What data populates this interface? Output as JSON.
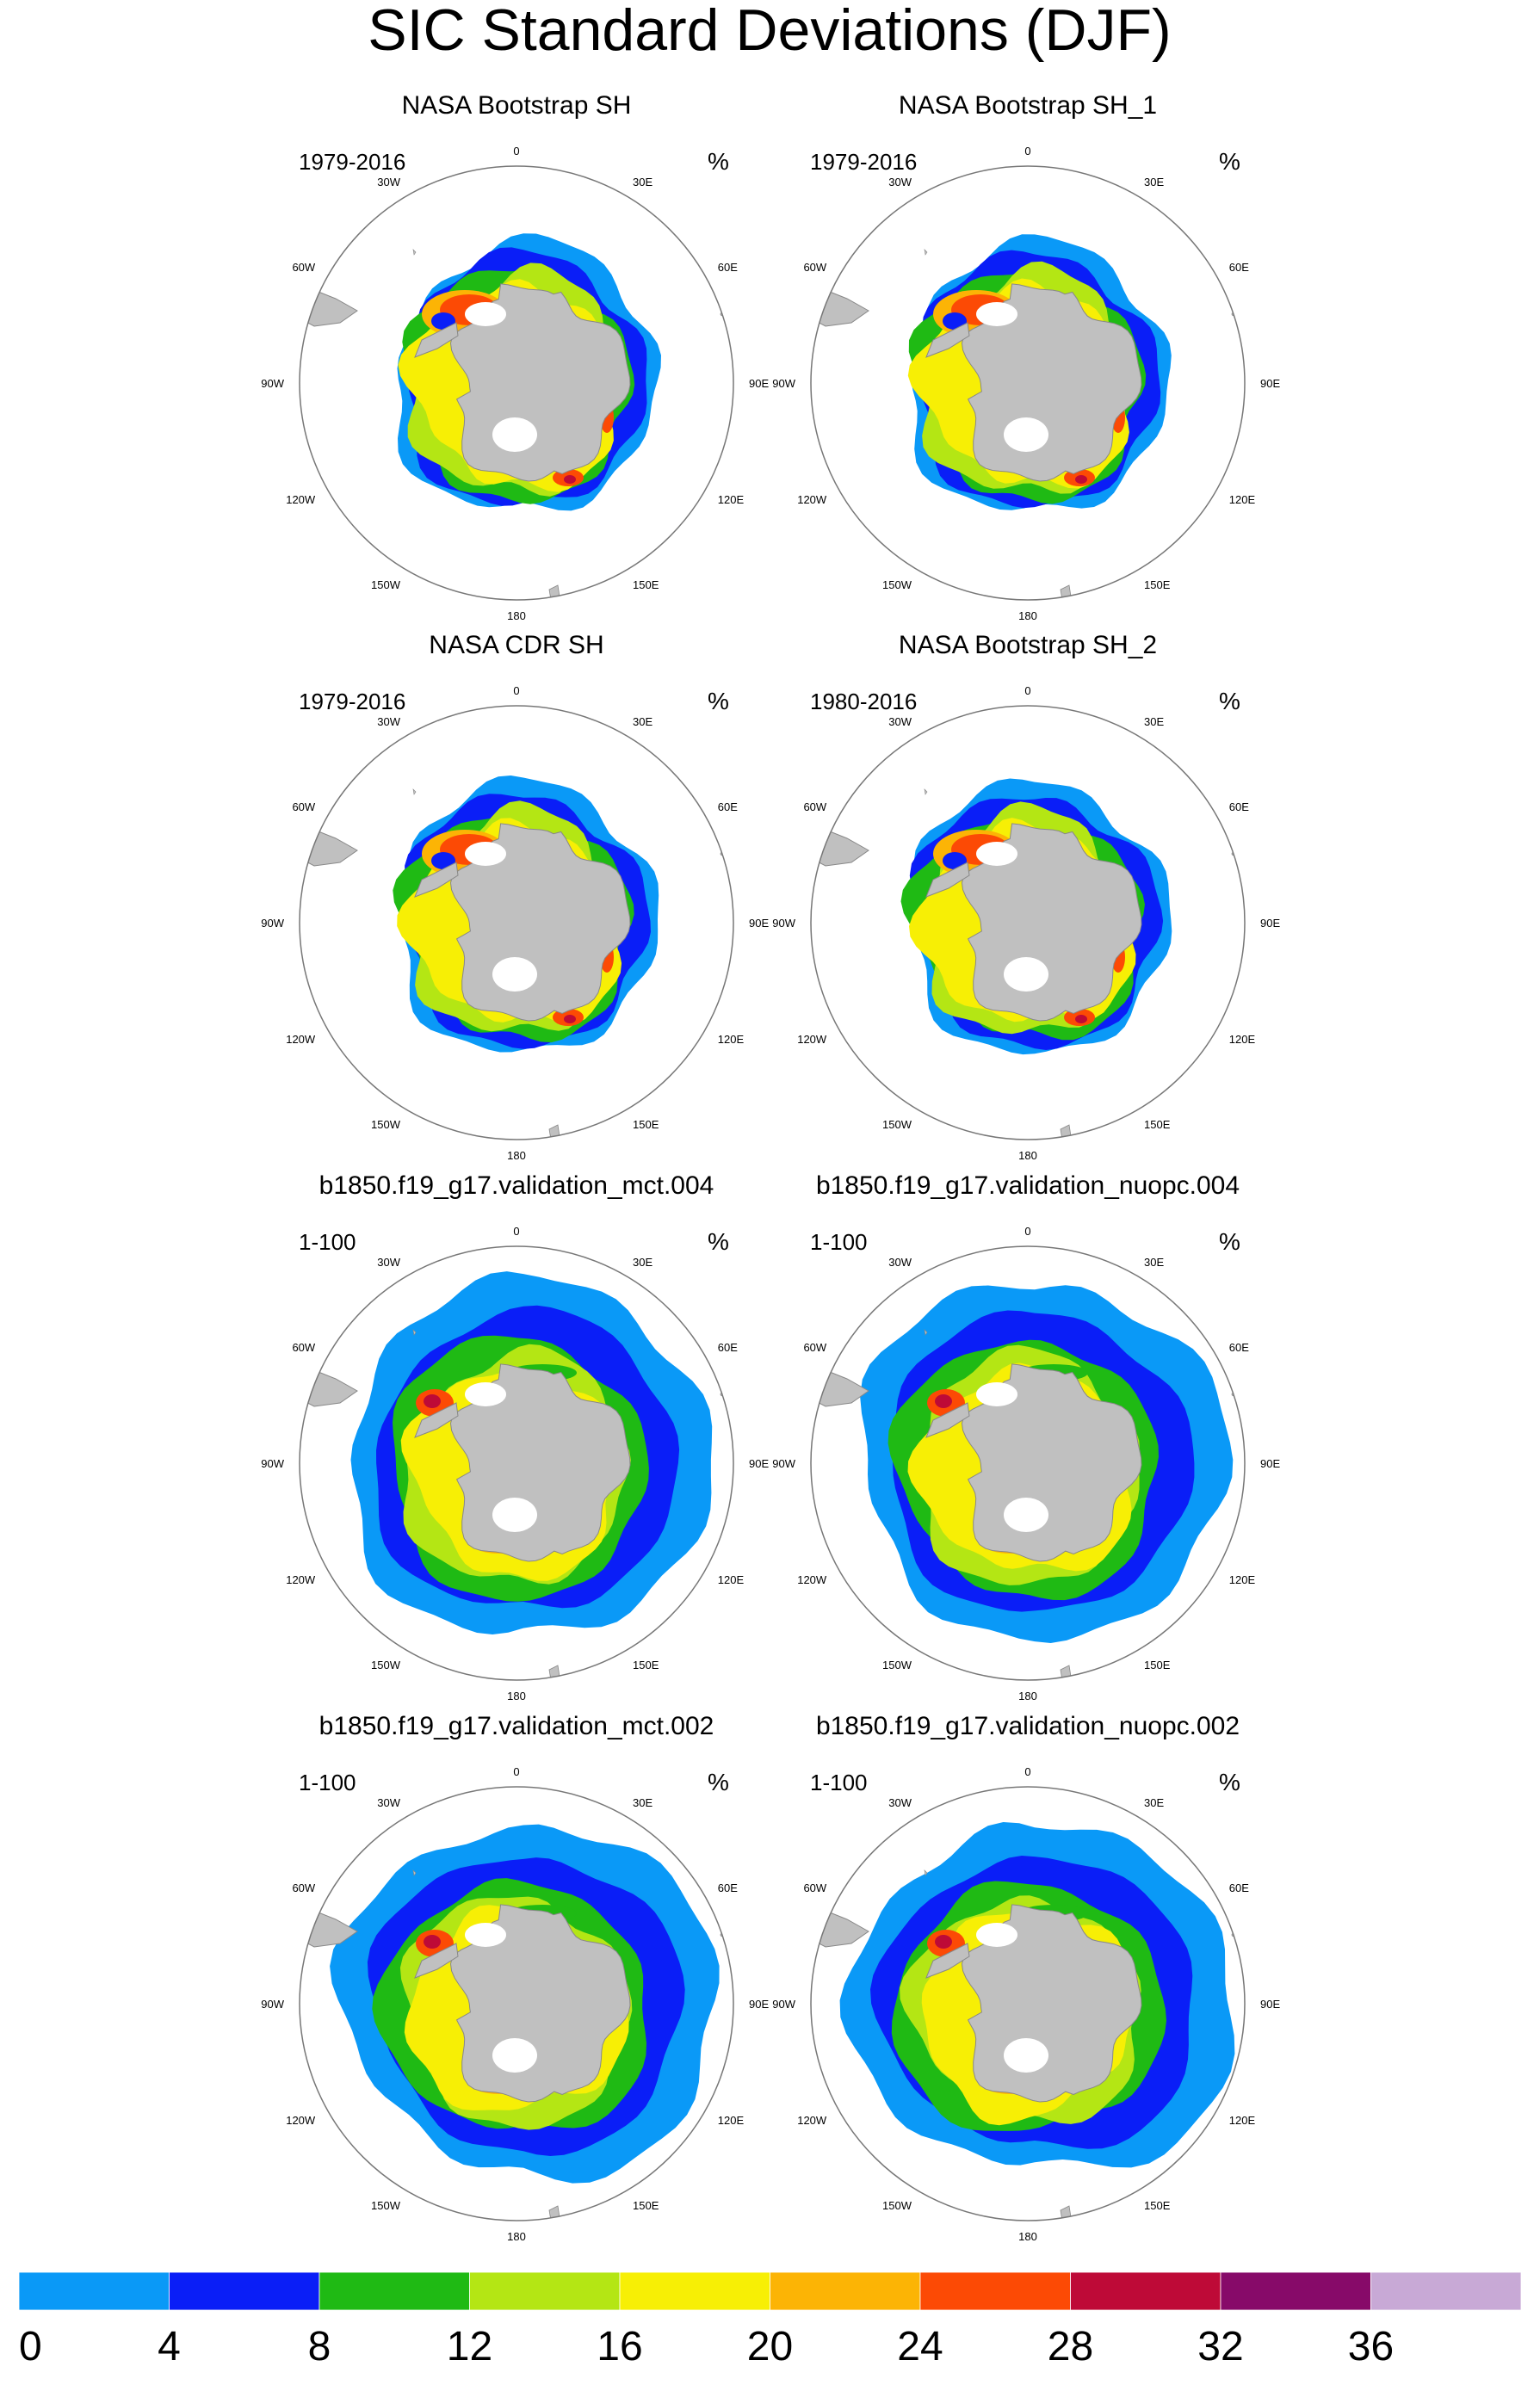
{
  "figure": {
    "title": "SIC Standard Deviations (DJF)"
  },
  "panels": [
    {
      "title": "NASA Bootstrap SH",
      "period": "1979-2016",
      "units": "%",
      "type": "obs",
      "variant": 0
    },
    {
      "title": "NASA Bootstrap SH_1",
      "period": "1979-2016",
      "units": "%",
      "type": "obs",
      "variant": 1
    },
    {
      "title": "NASA CDR SH",
      "period": "1979-2016",
      "units": "%",
      "type": "obs",
      "variant": 2
    },
    {
      "title": "NASA Bootstrap SH_2",
      "period": "1980-2016",
      "units": "%",
      "type": "obs",
      "variant": 3
    },
    {
      "title": "b1850.f19_g17.validation_mct.004",
      "period": "1-100",
      "units": "%",
      "type": "model",
      "variant": 0
    },
    {
      "title": "b1850.f19_g17.validation_nuopc.004",
      "period": "1-100",
      "units": "%",
      "type": "model",
      "variant": 1
    },
    {
      "title": "b1850.f19_g17.validation_mct.002",
      "period": "1-100",
      "units": "%",
      "type": "model",
      "variant": 2
    },
    {
      "title": "b1850.f19_g17.validation_nuopc.002",
      "period": "1-100",
      "units": "%",
      "type": "model",
      "variant": 3
    }
  ],
  "longitude_labels": [
    "0",
    "30E",
    "60E",
    "90E",
    "120E",
    "150E",
    "180",
    "150W",
    "120W",
    "90W",
    "60W",
    "30W"
  ],
  "colorbar": {
    "levels": [
      0,
      4,
      8,
      12,
      16,
      20,
      24,
      28,
      32,
      36
    ],
    "labels": [
      "0",
      "4",
      "8",
      "12",
      "16",
      "20",
      "24",
      "28",
      "32",
      "36"
    ],
    "colors": [
      "#0a99f7",
      "#0a1ef7",
      "#1fba14",
      "#b4e614",
      "#f7ef05",
      "#fcb405",
      "#fc4a05",
      "#be0a37",
      "#870a69",
      "#c8a9d6"
    ]
  },
  "palette": {
    "land": "#c0c0c0",
    "land_edge": "#888888",
    "ring": "#777777"
  }
}
